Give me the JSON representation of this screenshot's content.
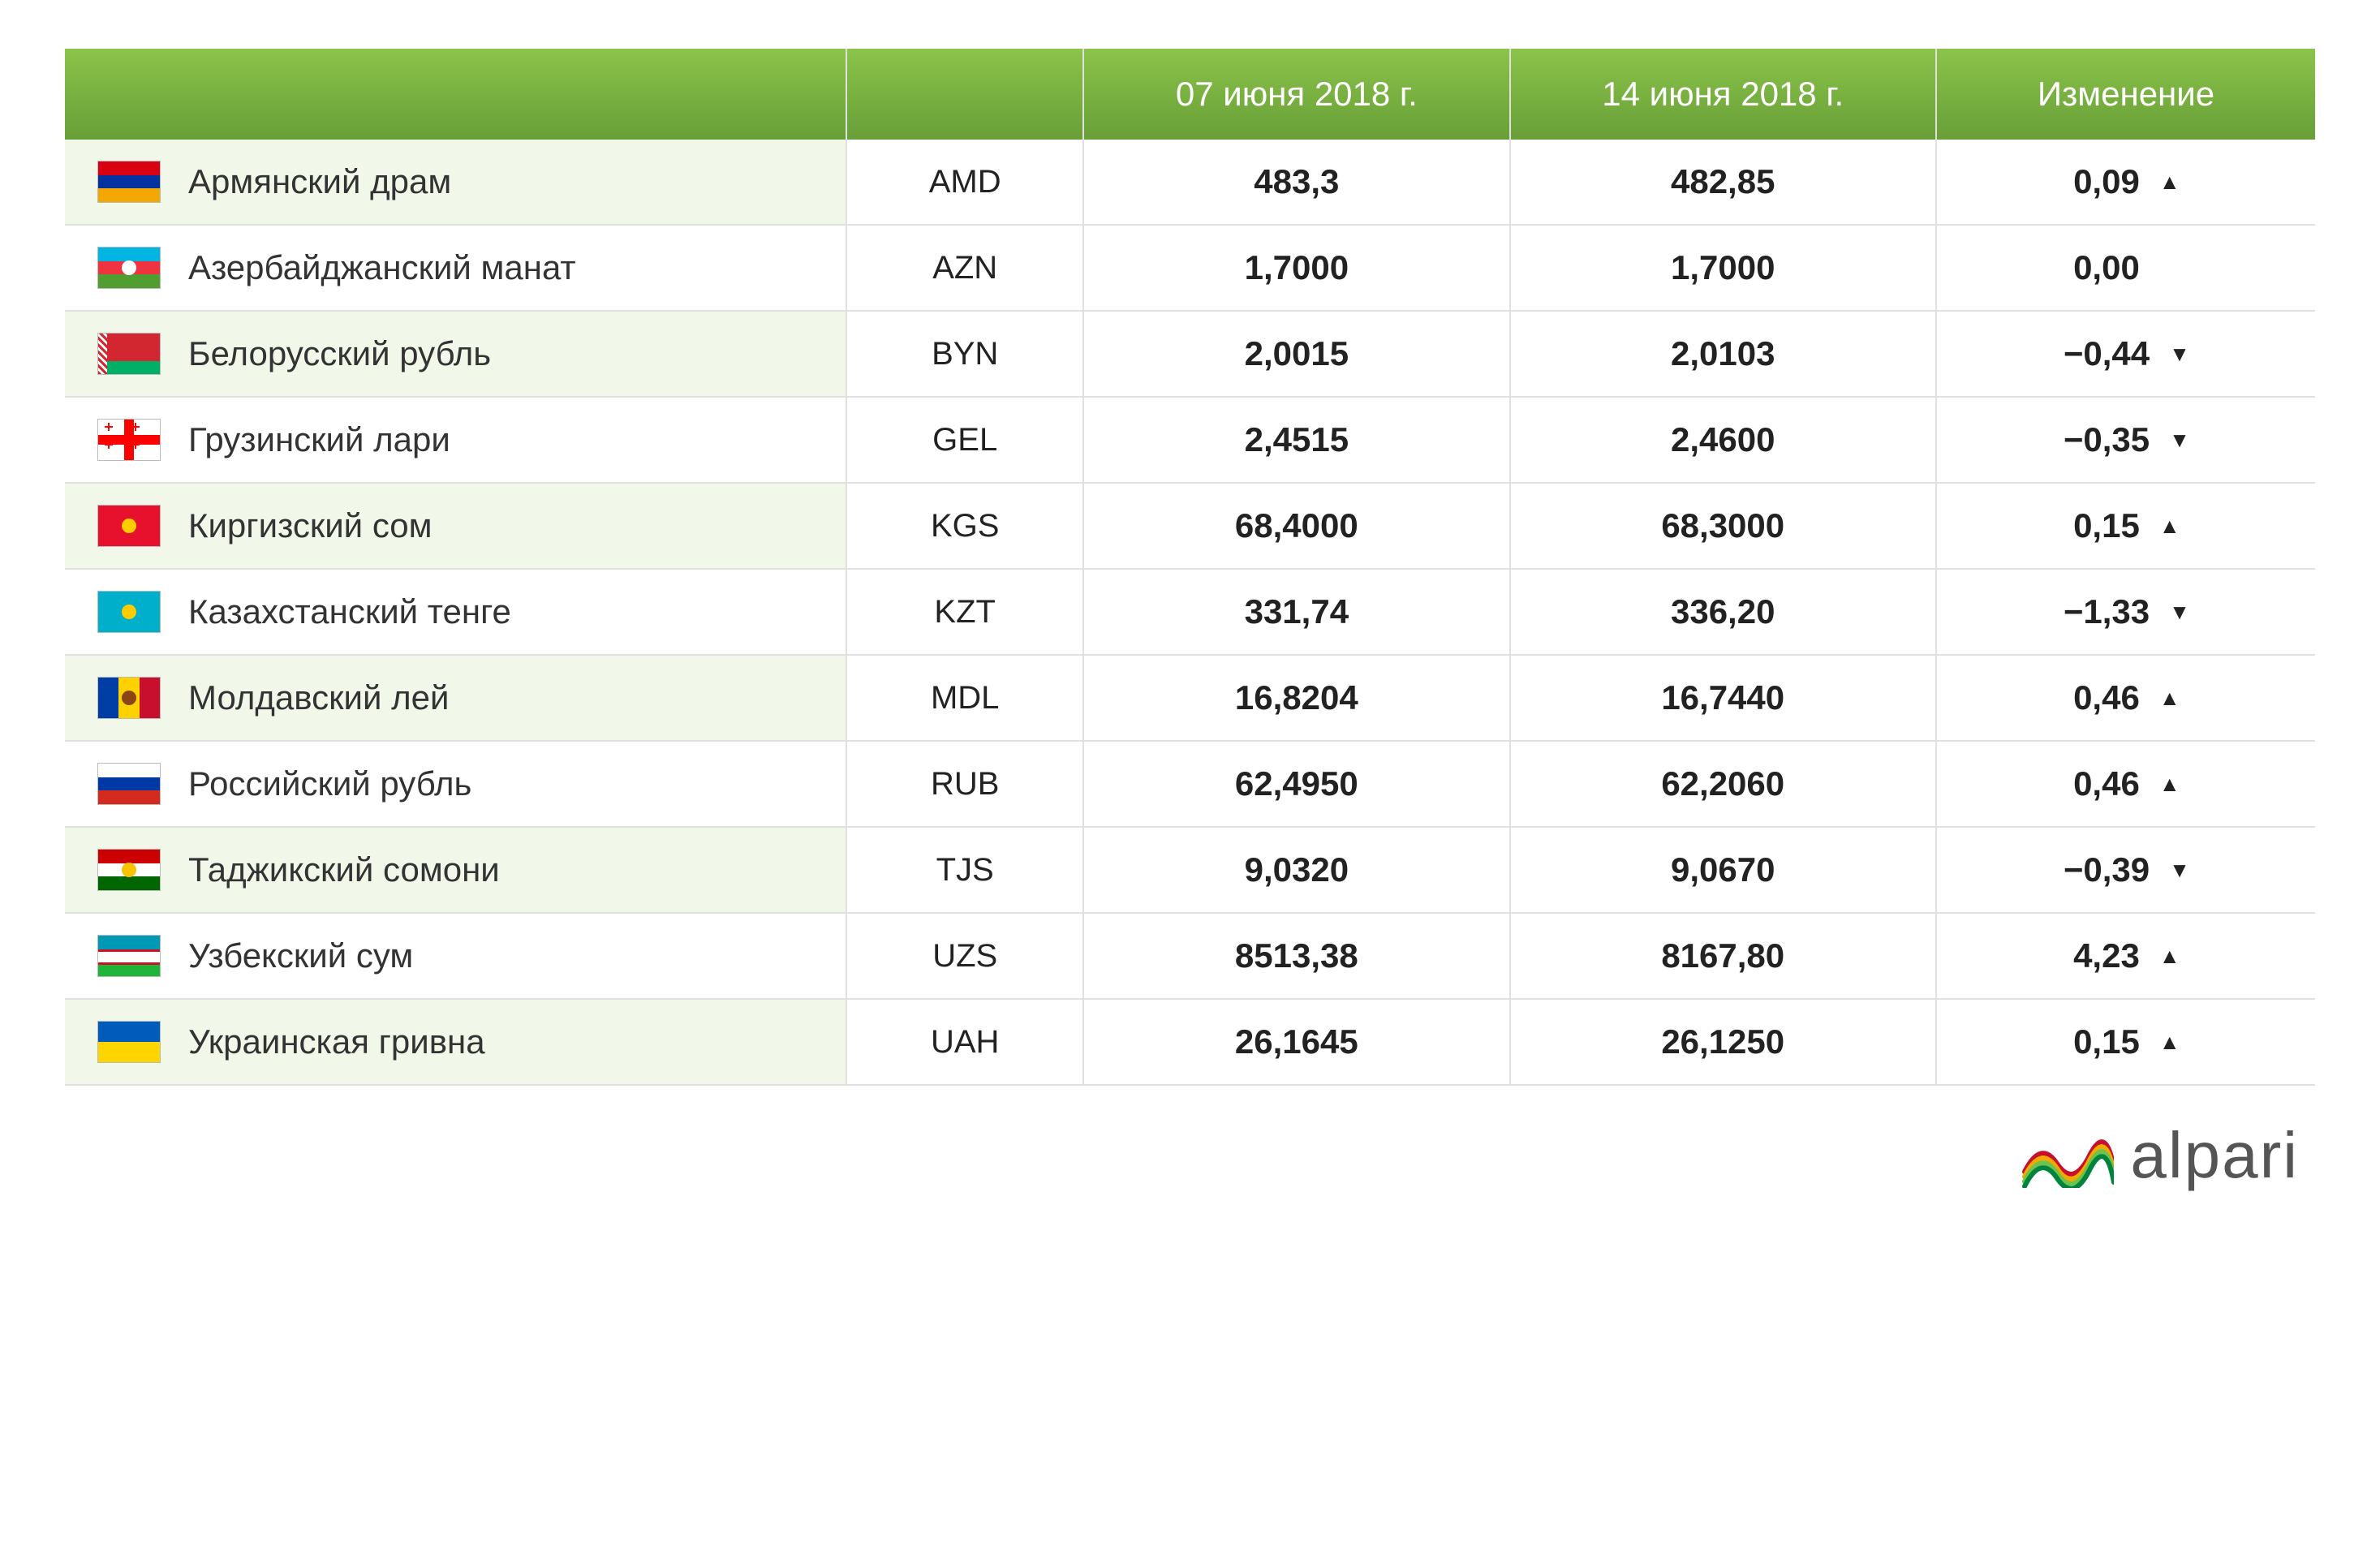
{
  "header": {
    "col_name": "",
    "col_code": "",
    "col_date1": "07 июня 2018 г.",
    "col_date2": "14 июня 2018 г.",
    "col_change": "Изменение"
  },
  "colors": {
    "header_grad_top": "#8bc34a",
    "header_grad_bottom": "#689f38",
    "header_text": "#ffffff",
    "row_alt_bg": "#f1f8e9",
    "border": "#e0e0e0",
    "up": "#4caf50",
    "down": "#f44336",
    "neutral": "#222222",
    "text": "#222222",
    "logo_text": "#555555"
  },
  "rows": [
    {
      "name": "Армянский драм",
      "code": "AMD",
      "v1": "483,3",
      "v2": "482,85",
      "change": "0,09",
      "dir": "up",
      "flag": {
        "type": "h3",
        "c": [
          "#d90012",
          "#0033a0",
          "#f2a800"
        ]
      }
    },
    {
      "name": "Азербайджанский манат",
      "code": "AZN",
      "v1": "1,7000",
      "v2": "1,7000",
      "change": "0,00",
      "dir": "neutral",
      "flag": {
        "type": "h3",
        "c": [
          "#00b5e2",
          "#ef3340",
          "#509e2f"
        ],
        "emblem": "#ffffff"
      }
    },
    {
      "name": "Белорусский рубль",
      "code": "BYN",
      "v1": "2,0015",
      "v2": "2,0103",
      "change": "−0,44",
      "dir": "down",
      "flag": {
        "type": "by",
        "c": [
          "#d22730",
          "#00af66",
          "#d22730"
        ]
      }
    },
    {
      "name": "Грузинский лари",
      "code": "GEL",
      "v1": "2,4515",
      "v2": "2,4600",
      "change": "−0,35",
      "dir": "down",
      "flag": {
        "type": "ge",
        "c": [
          "#ffffff",
          "#ff0000"
        ]
      }
    },
    {
      "name": "Киргизский сом",
      "code": "KGS",
      "v1": "68,4000",
      "v2": "68,3000",
      "change": "0,15",
      "dir": "up",
      "flag": {
        "type": "solid",
        "c": [
          "#e8112d"
        ],
        "emblem": "#ffcc00"
      }
    },
    {
      "name": "Казахстанский тенге",
      "code": "KZT",
      "v1": "331,74",
      "v2": "336,20",
      "change": "−1,33",
      "dir": "down",
      "flag": {
        "type": "solid",
        "c": [
          "#00afca"
        ],
        "emblem": "#ffcc00"
      }
    },
    {
      "name": "Молдавский лей",
      "code": "MDL",
      "v1": "16,8204",
      "v2": "16,7440",
      "change": "0,46",
      "dir": "up",
      "flag": {
        "type": "v3",
        "c": [
          "#003da5",
          "#ffd100",
          "#c8102e"
        ],
        "emblem": "#8b4513"
      }
    },
    {
      "name": "Российский рубль",
      "code": "RUB",
      "v1": "62,4950",
      "v2": "62,2060",
      "change": "0,46",
      "dir": "up",
      "flag": {
        "type": "h3",
        "c": [
          "#ffffff",
          "#0039a6",
          "#d52b1e"
        ]
      }
    },
    {
      "name": "Таджикский сомони",
      "code": "TJS",
      "v1": "9,0320",
      "v2": "9,0670",
      "change": "−0,39",
      "dir": "down",
      "flag": {
        "type": "h3",
        "c": [
          "#cc0000",
          "#ffffff",
          "#006600"
        ],
        "emblem": "#f8c300"
      }
    },
    {
      "name": "Узбекский сум",
      "code": "UZS",
      "v1": "8513,38",
      "v2": "8167,80",
      "change": "4,23",
      "dir": "up",
      "flag": {
        "type": "uz",
        "c": [
          "#0099b5",
          "#ffffff",
          "#1eb53a",
          "#ce1126"
        ]
      }
    },
    {
      "name": "Украинская гривна",
      "code": "UAH",
      "v1": "26,1645",
      "v2": "26,1250",
      "change": "0,15",
      "dir": "up",
      "flag": {
        "type": "h2",
        "c": [
          "#005bbb",
          "#ffd500"
        ]
      }
    }
  ],
  "logo": {
    "text": "alpari",
    "wave_colors": [
      "#c8102e",
      "#f2a900",
      "#6cc24a",
      "#00843d"
    ]
  }
}
